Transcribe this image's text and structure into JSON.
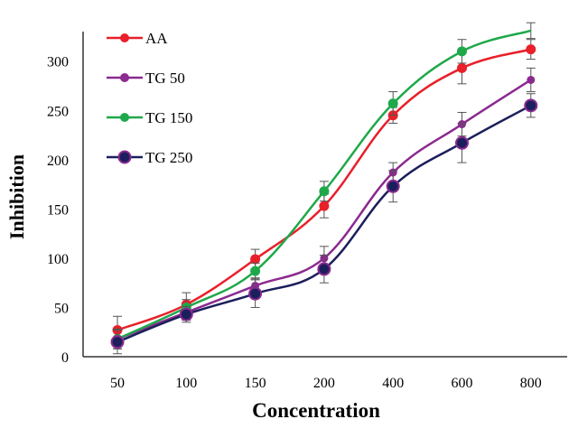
{
  "chart_data": {
    "type": "line",
    "title": "",
    "xlabel": "Concentration",
    "ylabel": "Inhibition",
    "categories": [
      "50",
      "100",
      "150",
      "200",
      "400",
      "600",
      "800"
    ],
    "ylim": [
      0,
      330
    ],
    "yticks": [
      0,
      50,
      100,
      150,
      200,
      250,
      300
    ],
    "grid": false,
    "legend_position": "top-left",
    "series": [
      {
        "name": "AA",
        "color": "#e8202a",
        "values": [
          27,
          53,
          99,
          153,
          245,
          293,
          312
        ],
        "errors": [
          14,
          12,
          10,
          12,
          8,
          16,
          10
        ]
      },
      {
        "name": "TG 50",
        "color": "#8b2a8f",
        "values": [
          18,
          45,
          72,
          100,
          187,
          236,
          281
        ],
        "errors": [
          10,
          8,
          8,
          12,
          10,
          12,
          12
        ]
      },
      {
        "name": "TG 150",
        "color": "#1fa84a",
        "values": [
          18,
          50,
          87,
          168,
          257,
          310,
          331
        ],
        "errors": [
          10,
          8,
          8,
          10,
          12,
          12,
          8
        ]
      },
      {
        "name": "TG 250",
        "color": "#1b1f5c",
        "values": [
          15,
          43,
          64,
          89,
          173,
          217,
          255
        ],
        "errors": [
          12,
          8,
          14,
          14,
          16,
          20,
          12
        ]
      }
    ]
  }
}
